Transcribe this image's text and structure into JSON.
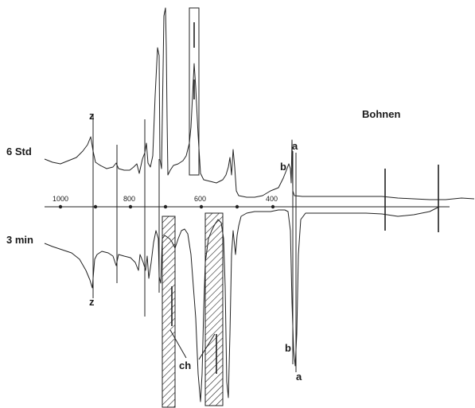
{
  "title": "Bohnen",
  "traces": {
    "upper_label": "6 Std",
    "lower_label": "3 min"
  },
  "axis": {
    "ticks": [
      "1000",
      "800",
      "600",
      "400"
    ]
  },
  "band_labels": {
    "z_top": "z",
    "z_bottom": "z",
    "a_top": "a",
    "b_top": "b",
    "a_bottom": "a",
    "b_bottom": "b",
    "ch": "ch"
  }
}
